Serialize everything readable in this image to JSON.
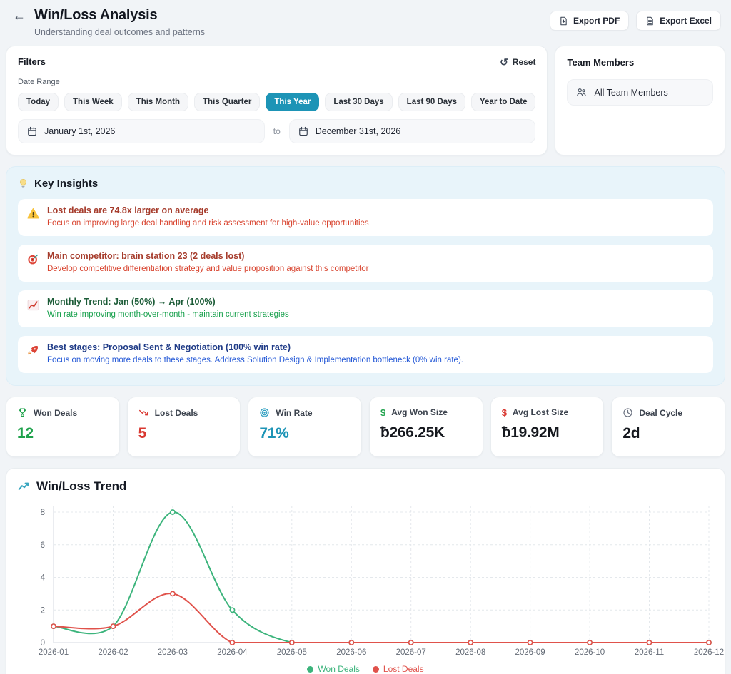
{
  "header": {
    "title": "Win/Loss Analysis",
    "subtitle": "Understanding deal outcomes and patterns",
    "export_pdf_label": "Export PDF",
    "export_excel_label": "Export Excel"
  },
  "filters": {
    "title": "Filters",
    "reset_label": "Reset",
    "date_range_label": "Date Range",
    "presets": [
      "Today",
      "This Week",
      "This Month",
      "This Quarter",
      "This Year",
      "Last 30 Days",
      "Last 90 Days",
      "Year to Date"
    ],
    "selected_preset": "This Year",
    "start_date": "January 1st, 2026",
    "to_label": "to",
    "end_date": "December 31st, 2026"
  },
  "team_members": {
    "title": "Team Members",
    "selected": "All Team Members"
  },
  "key_insights": {
    "title": "Key Insights",
    "items": [
      {
        "icon": "warning-icon",
        "tone": "red",
        "title": "Lost deals are 74.8x larger on average",
        "description": "Focus on improving large deal handling and risk assessment for high-value opportunities"
      },
      {
        "icon": "dartboard-icon",
        "tone": "red",
        "title": "Main competitor: brain station 23 (2 deals lost)",
        "description": "Develop competitive differentiation strategy and value proposition against this competitor"
      },
      {
        "icon": "chart-increasing-icon",
        "tone": "green",
        "title": "Monthly Trend: Jan (50%) → Apr (100%)",
        "description": "Win rate improving month-over-month - maintain current strategies"
      },
      {
        "icon": "rocket-icon",
        "tone": "blue",
        "title": "Best stages: Proposal Sent & Negotiation (100% win rate)",
        "description": "Focus on moving more deals to these stages. Address Solution Design & Implementation bottleneck (0% win rate)."
      }
    ]
  },
  "stats": [
    {
      "icon": "trophy-icon",
      "label": "Won Deals",
      "value": "12",
      "color": "#1fa24c"
    },
    {
      "icon": "trending-down-icon",
      "label": "Lost Deals",
      "value": "5",
      "color": "#d93831"
    },
    {
      "icon": "target-icon",
      "label": "Win Rate",
      "value": "71%",
      "color": "#1d94b6"
    },
    {
      "icon": "dollar-icon-green",
      "label": "Avg Won Size",
      "value": "৳266.25K",
      "color": "#15181e"
    },
    {
      "icon": "dollar-icon-red",
      "label": "Avg Lost Size",
      "value": "৳19.92M",
      "color": "#15181e"
    },
    {
      "icon": "clock-icon",
      "label": "Deal Cycle",
      "value": "2d",
      "color": "#15181e"
    }
  ],
  "chart_section": {
    "title": "Win/Loss Trend"
  },
  "chart_data": {
    "type": "line",
    "title": "Win/Loss Trend",
    "x": [
      "2026-01",
      "2026-02",
      "2026-03",
      "2026-04",
      "2026-05",
      "2026-06",
      "2026-07",
      "2026-08",
      "2026-09",
      "2026-10",
      "2026-11",
      "2026-12"
    ],
    "series": [
      {
        "name": "Won Deals",
        "color": "#3cb47c",
        "values": [
          1,
          1,
          8,
          2,
          0,
          0,
          0,
          0,
          0,
          0,
          0,
          0
        ]
      },
      {
        "name": "Lost Deals",
        "color": "#e0524b",
        "values": [
          1,
          1,
          3,
          0,
          0,
          0,
          0,
          0,
          0,
          0,
          0,
          0
        ]
      }
    ],
    "ylim": [
      0,
      8
    ],
    "yticks": [
      0,
      2,
      4,
      6,
      8
    ],
    "grid": "dashed",
    "legend_position": "bottom"
  },
  "accent_colors": {
    "primary_teal": "#1d94b6",
    "won_green": "#3cb47c",
    "lost_red": "#e0524b",
    "insights_bg": "#e8f4fa"
  }
}
